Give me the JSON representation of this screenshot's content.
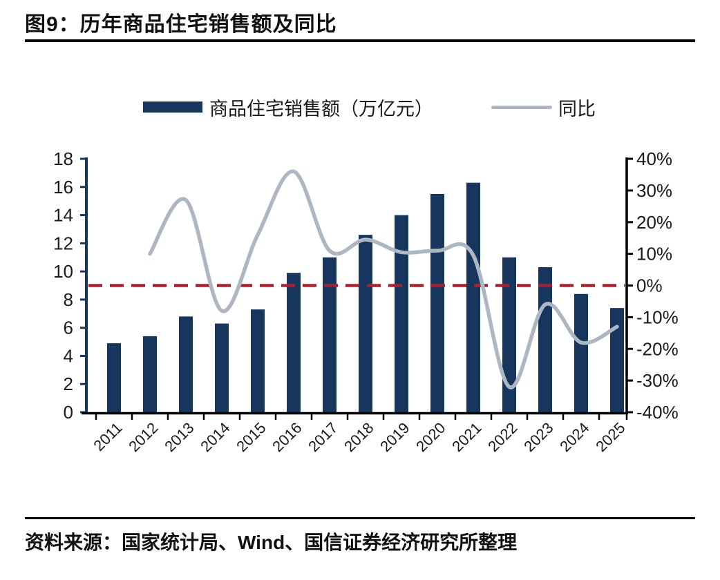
{
  "header": {
    "figure_title": "图9：历年商品住宅销售额及同比"
  },
  "legend": {
    "bar_label": "商品住宅销售额（万亿元）",
    "line_label": "同比"
  },
  "footer": {
    "source_text": "资料来源：国家统计局、Wind、国信证券经济研究所整理"
  },
  "colors": {
    "bar": "#17365D",
    "line": "#AEB7C1",
    "zero_dash": "#B01E2E",
    "axis_left": "#17365D",
    "axis_black": "#000000",
    "tick_text": "#1A1A1A"
  },
  "chart_data": {
    "type": "bar+line",
    "title": "图9：历年商品住宅销售额及同比",
    "categories": [
      "2011",
      "2012",
      "2013",
      "2014",
      "2015",
      "2016",
      "2017",
      "2018",
      "2019",
      "2020",
      "2021",
      "2022",
      "2023",
      "2024",
      "2025"
    ],
    "series": [
      {
        "name": "商品住宅销售额（万亿元）",
        "type": "bar",
        "axis": "left",
        "color": "#17365D",
        "values": [
          4.9,
          5.4,
          6.8,
          6.3,
          7.3,
          9.9,
          11.0,
          12.6,
          14.0,
          15.5,
          16.3,
          11.0,
          10.3,
          8.4,
          7.4
        ]
      },
      {
        "name": "同比",
        "type": "line",
        "axis": "right",
        "color": "#AEB7C1",
        "values": [
          null,
          10,
          27,
          -8,
          16,
          36,
          11,
          14.5,
          10.5,
          11,
          9.5,
          -32,
          -6,
          -18,
          -13
        ]
      }
    ],
    "left_axis": {
      "min": 0,
      "max": 18,
      "step": 2,
      "tick_labels": [
        "0",
        "2",
        "4",
        "6",
        "8",
        "10",
        "12",
        "14",
        "16",
        "18"
      ]
    },
    "right_axis": {
      "min": -40,
      "max": 40,
      "step": 10,
      "unit": "%",
      "tick_labels": [
        "-40%",
        "-30%",
        "-20%",
        "-10%",
        "0%",
        "10%",
        "20%",
        "30%",
        "40%"
      ]
    },
    "reference_line": {
      "axis": "right",
      "value": 0,
      "style": "dashed",
      "color": "#B01E2E"
    },
    "legend_position": "top",
    "grid": false
  }
}
